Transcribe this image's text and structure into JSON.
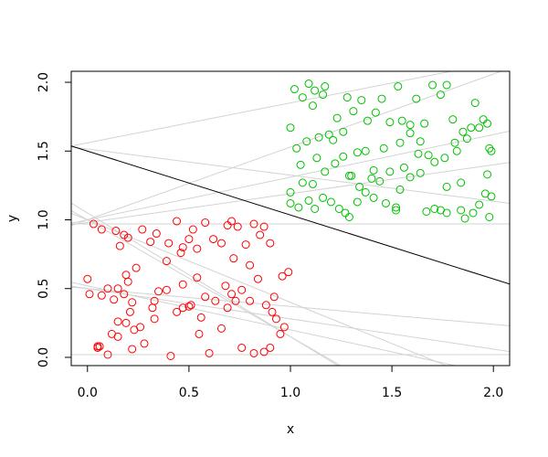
{
  "chart_data": {
    "type": "scatter",
    "x_label": "x",
    "y_label": "y",
    "xlim": [
      -0.08,
      2.08
    ],
    "ylim": [
      -0.06,
      2.08
    ],
    "xticks": [
      {
        "value": 0,
        "label": "0.0"
      },
      {
        "value": 0.5,
        "label": "0.5"
      },
      {
        "value": 1,
        "label": "1.0"
      },
      {
        "value": 1.5,
        "label": "1.5"
      },
      {
        "value": 2,
        "label": "2.0"
      }
    ],
    "yticks": [
      {
        "value": 0,
        "label": "0.0"
      },
      {
        "value": 0.5,
        "label": "0.5"
      },
      {
        "value": 1,
        "label": "1.0"
      },
      {
        "value": 1.5,
        "label": "1.5"
      },
      {
        "value": 2,
        "label": "2.0"
      }
    ],
    "series": [
      {
        "color": "#ff0000",
        "x": [
          0.0,
          0.01,
          0.07,
          0.1,
          0.13,
          0.15,
          0.18,
          0.19,
          0.2,
          0.22,
          0.24,
          0.03,
          0.07,
          0.14,
          0.18,
          0.2,
          0.16,
          0.27,
          0.31,
          0.34,
          0.4,
          0.44,
          0.47,
          0.5,
          0.52,
          0.58,
          0.62,
          0.66,
          0.69,
          0.71,
          0.74,
          0.78,
          0.82,
          0.85,
          0.87,
          0.9,
          0.46,
          0.39,
          0.54,
          0.72,
          0.8,
          0.84,
          0.96,
          0.99,
          0.92,
          0.88,
          0.91,
          0.93,
          0.95,
          0.97,
          0.9,
          0.87,
          0.82,
          0.76,
          0.66,
          0.6,
          0.55,
          0.5,
          0.47,
          0.44,
          0.56,
          0.63,
          0.69,
          0.73,
          0.76,
          0.8,
          0.68,
          0.54,
          0.41,
          0.35,
          0.33,
          0.32,
          0.33,
          0.28,
          0.22,
          0.1,
          0.05,
          0.05,
          0.06,
          0.12,
          0.15,
          0.15,
          0.19,
          0.23,
          0.21,
          0.26,
          0.39,
          0.51,
          0.47,
          0.58,
          0.71
        ],
        "values": [
          0.57,
          0.46,
          0.45,
          0.5,
          0.42,
          0.5,
          0.46,
          0.6,
          0.55,
          0.4,
          0.65,
          0.97,
          0.93,
          0.92,
          0.89,
          0.87,
          0.81,
          0.93,
          0.84,
          0.9,
          0.83,
          0.99,
          0.8,
          0.86,
          0.93,
          0.98,
          0.86,
          0.83,
          0.96,
          0.99,
          0.95,
          0.82,
          0.97,
          0.89,
          0.95,
          0.83,
          0.76,
          0.7,
          0.79,
          0.72,
          0.67,
          0.57,
          0.59,
          0.62,
          0.44,
          0.38,
          0.33,
          0.28,
          0.17,
          0.22,
          0.07,
          0.04,
          0.03,
          0.07,
          0.21,
          0.03,
          0.17,
          0.37,
          0.36,
          0.33,
          0.29,
          0.41,
          0.36,
          0.41,
          0.49,
          0.41,
          0.52,
          0.58,
          0.01,
          0.48,
          0.41,
          0.36,
          0.28,
          0.1,
          0.06,
          0.02,
          0.08,
          0.07,
          0.08,
          0.17,
          0.15,
          0.26,
          0.25,
          0.2,
          0.33,
          0.22,
          0.49,
          0.38,
          0.53,
          0.44,
          0.46
        ]
      },
      {
        "color": "#00c000",
        "x": [
          1.0,
          1.02,
          1.06,
          1.09,
          1.12,
          1.16,
          1.17,
          1.03,
          1.05,
          1.08,
          1.11,
          1.14,
          1.13,
          1.19,
          1.21,
          1.23,
          1.26,
          1.28,
          1.31,
          1.35,
          1.38,
          1.42,
          1.45,
          1.53,
          1.55,
          1.59,
          1.62,
          1.66,
          1.7,
          1.77,
          1.8,
          1.74,
          1.91,
          1.95,
          1.97,
          1.93,
          1.89,
          1.85,
          1.81,
          1.76,
          1.64,
          1.59,
          1.54,
          1.49,
          1.46,
          1.41,
          1.37,
          1.33,
          1.29,
          1.26,
          1.22,
          1.17,
          1.11,
          1.06,
          1.0,
          1.0,
          1.04,
          1.09,
          1.12,
          1.16,
          1.2,
          1.24,
          1.27,
          1.29,
          1.33,
          1.37,
          1.41,
          1.47,
          1.52,
          1.54,
          1.59,
          1.64,
          1.67,
          1.71,
          1.74,
          1.77,
          1.84,
          1.86,
          1.9,
          1.93,
          1.96,
          1.98,
          1.99,
          1.97,
          1.98,
          1.99,
          1.84,
          1.77,
          1.71,
          1.49,
          1.44,
          1.4,
          1.3,
          1.34,
          1.56,
          1.68,
          1.63,
          1.87,
          1.82,
          1.52
        ],
        "values": [
          1.67,
          1.95,
          1.89,
          1.99,
          1.94,
          1.91,
          1.97,
          1.52,
          1.4,
          1.57,
          1.83,
          1.6,
          1.45,
          1.62,
          1.58,
          1.74,
          1.64,
          1.89,
          1.79,
          1.87,
          1.72,
          1.78,
          1.88,
          1.97,
          1.72,
          1.69,
          1.88,
          1.7,
          1.98,
          1.98,
          1.73,
          1.91,
          1.85,
          1.73,
          1.7,
          1.67,
          1.67,
          1.64,
          1.56,
          1.45,
          1.57,
          1.63,
          1.56,
          1.71,
          1.52,
          1.36,
          1.5,
          1.49,
          1.32,
          1.46,
          1.41,
          1.35,
          1.26,
          1.27,
          1.2,
          1.12,
          1.09,
          1.14,
          1.08,
          1.16,
          1.13,
          1.08,
          1.05,
          1.02,
          1.13,
          1.2,
          1.16,
          1.12,
          1.09,
          1.22,
          1.31,
          1.34,
          1.06,
          1.08,
          1.07,
          1.05,
          1.07,
          1.01,
          1.05,
          1.11,
          1.19,
          1.02,
          1.17,
          1.33,
          1.52,
          1.5,
          1.27,
          1.24,
          1.42,
          1.35,
          1.28,
          1.3,
          1.32,
          1.24,
          1.38,
          1.47,
          1.48,
          1.59,
          1.5,
          1.07
        ]
      }
    ],
    "lines": [
      {
        "intercept": 1.56,
        "slope": 0.29,
        "color": "#d3d3d3"
      },
      {
        "intercept": 1.0,
        "slope": 0.53,
        "color": "#d3d3d3"
      },
      {
        "intercept": 1.0,
        "slope": 0.31,
        "color": "#d3d3d3"
      },
      {
        "intercept": 0.98,
        "slope": 0.21,
        "color": "#d3d3d3"
      },
      {
        "intercept": 1.515,
        "slope": -0.19,
        "color": "#d3d3d3"
      },
      {
        "intercept": 0.97,
        "slope": 0,
        "color": "#d3d3d3"
      },
      {
        "intercept": 0.02,
        "slope": 0,
        "color": "#d3d3d3"
      },
      {
        "intercept": 1.05,
        "slope": -0.9,
        "color": "#d3d3d3"
      },
      {
        "intercept": 1.0,
        "slope": -0.85,
        "color": "#d3d3d3"
      },
      {
        "intercept": 0.52,
        "slope": -0.32,
        "color": "#d3d3d3"
      },
      {
        "intercept": 0.5,
        "slope": -0.13,
        "color": "#d3d3d3"
      },
      {
        "intercept": 0.5,
        "slope": -0.22,
        "color": "#d3d3d3"
      },
      {
        "intercept": 1.0,
        "slope": -0.6,
        "color": "#d3d3d3"
      },
      {
        "intercept": 1.5,
        "slope": -0.465,
        "color": "#000000"
      }
    ]
  }
}
